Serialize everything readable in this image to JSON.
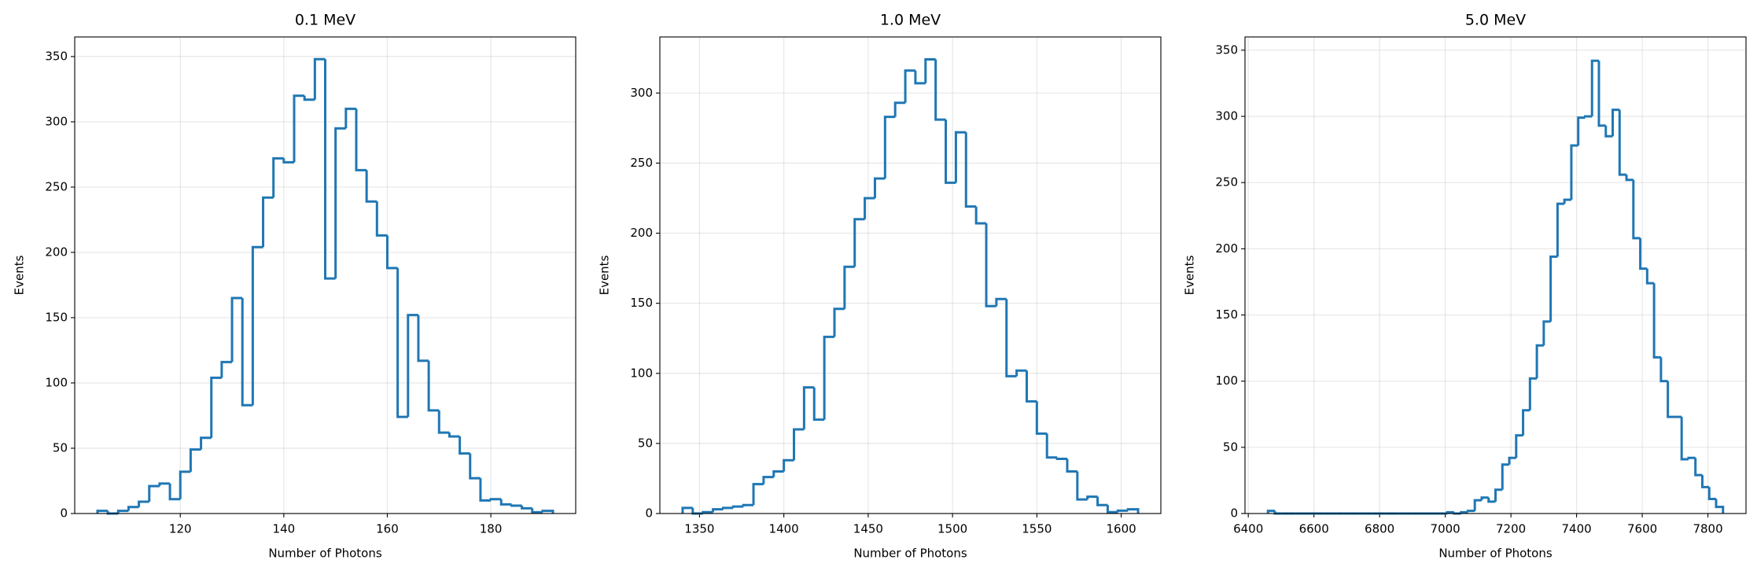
{
  "chart_data": [
    {
      "type": "histogram",
      "title": "0.1 MeV",
      "xlabel": "Number of Photons",
      "ylabel": "Events",
      "color": "#1f77b4",
      "grid": true,
      "bins": [
        104,
        106,
        108,
        110,
        112,
        114,
        116,
        118,
        120,
        122,
        124,
        126,
        128,
        130,
        132,
        134,
        136,
        138,
        140,
        142,
        144,
        146,
        148,
        150,
        152,
        154,
        156,
        158,
        160,
        162,
        164,
        166,
        168,
        170,
        172,
        174,
        176,
        178,
        180,
        182,
        184,
        186,
        188,
        190,
        192
      ],
      "values": [
        2,
        0,
        2,
        5,
        9,
        21,
        23,
        11,
        32,
        49,
        58,
        104,
        116,
        165,
        83,
        204,
        242,
        272,
        269,
        320,
        317,
        348,
        180,
        295,
        310,
        263,
        239,
        213,
        188,
        74,
        152,
        117,
        79,
        62,
        59,
        46,
        27,
        10,
        11,
        7,
        6,
        4,
        1,
        2
      ],
      "xlim": [
        99.6,
        196.4
      ],
      "ylim": [
        0,
        365
      ],
      "xticks": [
        120,
        140,
        160,
        180
      ],
      "yticks": [
        0,
        50,
        100,
        150,
        200,
        250,
        300,
        350
      ]
    },
    {
      "type": "histogram",
      "title": "1.0 MeV",
      "xlabel": "Number of Photons",
      "ylabel": "Events",
      "color": "#1f77b4",
      "grid": true,
      "bins": [
        1340,
        1346,
        1352,
        1358,
        1364,
        1370,
        1376,
        1382,
        1388,
        1394,
        1400,
        1406,
        1412,
        1418,
        1424,
        1430,
        1436,
        1442,
        1448,
        1454,
        1460,
        1466,
        1472,
        1478,
        1484,
        1490,
        1496,
        1502,
        1508,
        1514,
        1520,
        1526,
        1532,
        1538,
        1544,
        1550,
        1556,
        1562,
        1568,
        1574,
        1580,
        1586,
        1592,
        1598,
        1604,
        1610
      ],
      "values": [
        4,
        0,
        1,
        3,
        4,
        5,
        6,
        21,
        26,
        30,
        38,
        60,
        90,
        67,
        126,
        146,
        176,
        210,
        225,
        239,
        283,
        293,
        316,
        307,
        324,
        281,
        236,
        272,
        219,
        207,
        148,
        153,
        98,
        102,
        80,
        57,
        40,
        39,
        30,
        10,
        12,
        6,
        1,
        2,
        3
      ],
      "xlim": [
        1326.5,
        1623.5
      ],
      "ylim": [
        0,
        340
      ],
      "xticks": [
        1350,
        1400,
        1450,
        1500,
        1550,
        1600
      ],
      "yticks": [
        0,
        50,
        100,
        150,
        200,
        250,
        300
      ]
    },
    {
      "type": "histogram",
      "title": "5.0 MeV",
      "xlabel": "Number of Photons",
      "ylabel": "Events",
      "color": "#1f77b4",
      "grid": true,
      "bins": [
        6460,
        6481,
        6502,
        6523,
        6544,
        6565,
        6586,
        6607,
        6628,
        6649,
        6670,
        6691,
        6712,
        6733,
        6754,
        6775,
        6796,
        6817,
        6838,
        6859,
        6880,
        6901,
        6922,
        6943,
        6964,
        6985,
        7006,
        7027,
        7048,
        7069,
        7090,
        7111,
        7132,
        7153,
        7174,
        7195,
        7216,
        7237,
        7258,
        7279,
        7300,
        7321,
        7342,
        7363,
        7384,
        7405,
        7426,
        7447,
        7468,
        7489,
        7510,
        7531,
        7552,
        7573,
        7594,
        7615,
        7636,
        7657,
        7678,
        7699,
        7720,
        7741,
        7762,
        7783,
        7804,
        7825,
        7846
      ],
      "values": [
        2,
        0,
        0,
        0,
        0,
        0,
        0,
        0,
        0,
        0,
        0,
        0,
        0,
        0,
        0,
        0,
        0,
        0,
        0,
        0,
        0,
        0,
        0,
        0,
        0,
        0,
        1,
        0,
        1,
        2,
        10,
        12,
        9,
        18,
        37,
        42,
        59,
        78,
        102,
        127,
        145,
        194,
        234,
        237,
        278,
        299,
        300,
        342,
        293,
        285,
        305,
        256,
        252,
        208,
        185,
        174,
        118,
        100,
        73,
        73,
        41,
        42,
        29,
        20,
        11,
        5
      ],
      "xlim": [
        6390,
        7916
      ],
      "ylim": [
        0,
        360
      ],
      "xticks": [
        6400,
        6600,
        6800,
        7000,
        7200,
        7400,
        7600,
        7800
      ],
      "yticks": [
        0,
        50,
        100,
        150,
        200,
        250,
        300,
        350
      ]
    }
  ]
}
